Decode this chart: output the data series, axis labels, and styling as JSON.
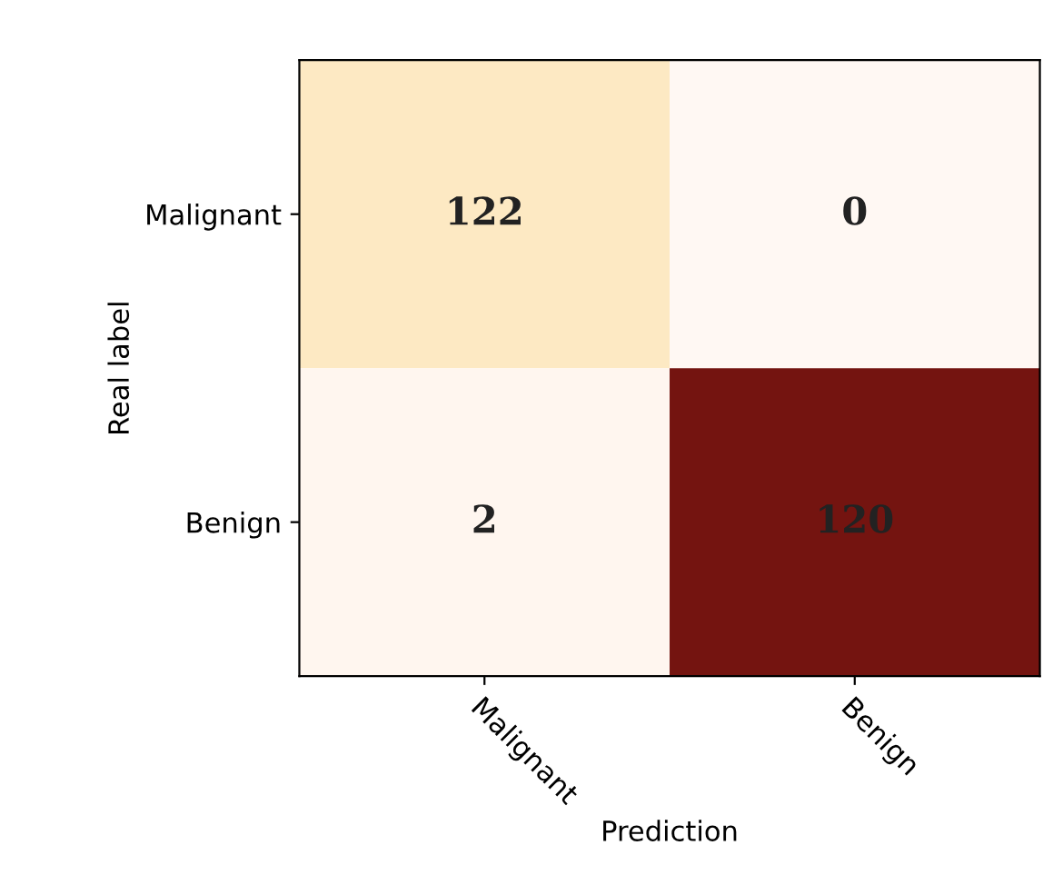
{
  "chart_data": {
    "type": "heatmap",
    "xlabel": "Prediction",
    "ylabel": "Real label",
    "categories": [
      "Malignant",
      "Benign"
    ],
    "y_categories": [
      "Malignant",
      "Benign"
    ],
    "cells": [
      [
        122,
        0
      ],
      [
        2,
        120
      ]
    ],
    "colors": [
      [
        "#fde9c3",
        "#fff8f3"
      ],
      [
        "#fff6ef",
        "#741410"
      ]
    ],
    "data_labels": true
  }
}
